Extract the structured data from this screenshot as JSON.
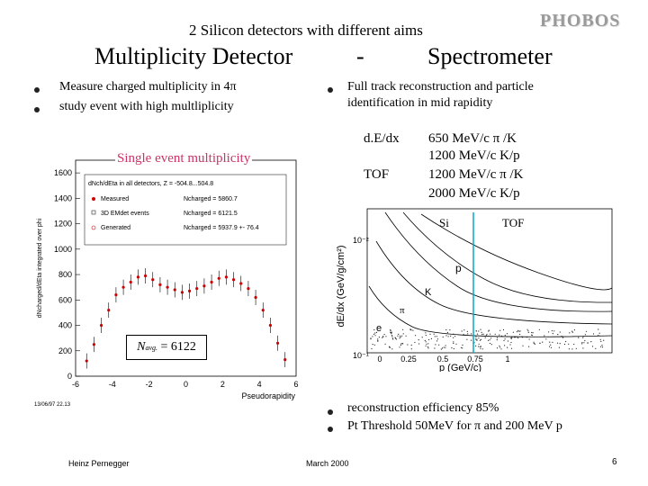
{
  "header": {
    "subtitle": "2 Silicon detectors with different aims",
    "logo": "PHOBOS",
    "left_title": "Multiplicity Detector",
    "dash": "-",
    "right_title": "Spectrometer"
  },
  "left_bullets": [
    "Measure charged multiplicity in 4π",
    "study event with high multliplicity"
  ],
  "right_bullets": [
    "Full track reconstruction  and particle",
    "identification in mid rapidity"
  ],
  "pid_table": {
    "dedx_label": "d.E/dx",
    "tof_label": "TOF",
    "lines": [
      "650 MeV/c π /K",
      "1200 MeV/c K/p",
      "1200 MeV/c π /K",
      "2000 MeV/c K/p"
    ]
  },
  "left_plot": {
    "caption": "Single event multiplicity",
    "ylabel": "dNcharged/dEta integrated over phi",
    "legend_title": "dNch/dEta in all detectors, Z = -504.8...504.8",
    "legend_rows": [
      {
        "name": "Measured",
        "value": "Ncharged = 5860.7"
      },
      {
        "name": "3D EMdet events",
        "value": "Ncharged = 6121.5"
      },
      {
        "name": "Generated",
        "value": "Ncharged = 5937.9 +- 76.4"
      }
    ],
    "xlabel": "Pseudorapidity",
    "timestamp": "13/06/97   22.13",
    "navg_label": "N",
    "navg_sub": "avg.",
    "navg_value": "= 6122",
    "y_ticks": [
      "0",
      "200",
      "400",
      "600",
      "800",
      "1000",
      "1200",
      "1400",
      "1600"
    ],
    "x_ticks": [
      "-6",
      "-4",
      "-2",
      "0",
      "2",
      "4",
      "6"
    ]
  },
  "right_plot": {
    "si_label": "Si",
    "tof_label": "TOF",
    "ylabel": "dE/dx (GeV/g/cm²)",
    "xlabel": "p (GeV/c)",
    "p_label": "p",
    "k_label": "K",
    "pi_label": "π",
    "e_label": "e",
    "y_top_tick": "10⁻²",
    "y_bot_tick": "10⁻¹",
    "x_ticks": [
      "0",
      "0.25",
      "0.5",
      "0.75",
      "1"
    ]
  },
  "bottom_bullets": [
    "reconstruction efficiency 85%",
    "Pt Threshold 50MeV for π and 200 MeV p"
  ],
  "footer": {
    "author": "Heinz Pernegger",
    "date": "March 2000",
    "page": "6"
  },
  "chart_data": {
    "type": "scatter",
    "title": "Single event multiplicity",
    "xlabel": "Pseudorapidity",
    "ylabel": "dNcharged/dEta integrated over phi",
    "xlim": [
      -6,
      6
    ],
    "ylim": [
      0,
      1700
    ],
    "series": [
      {
        "name": "Measured",
        "x": [
          -5.4,
          -5.0,
          -4.6,
          -4.2,
          -3.8,
          -3.4,
          -3.0,
          -2.6,
          -2.2,
          -1.8,
          -1.4,
          -1.0,
          -0.6,
          -0.2,
          0.2,
          0.6,
          1.0,
          1.4,
          1.8,
          2.2,
          2.6,
          3.0,
          3.4,
          3.8,
          4.2,
          4.6,
          5.0,
          5.4
        ],
        "y": [
          120,
          250,
          400,
          520,
          640,
          700,
          740,
          780,
          790,
          760,
          720,
          700,
          680,
          660,
          670,
          690,
          710,
          740,
          770,
          780,
          760,
          730,
          690,
          620,
          520,
          400,
          260,
          130
        ]
      }
    ]
  }
}
